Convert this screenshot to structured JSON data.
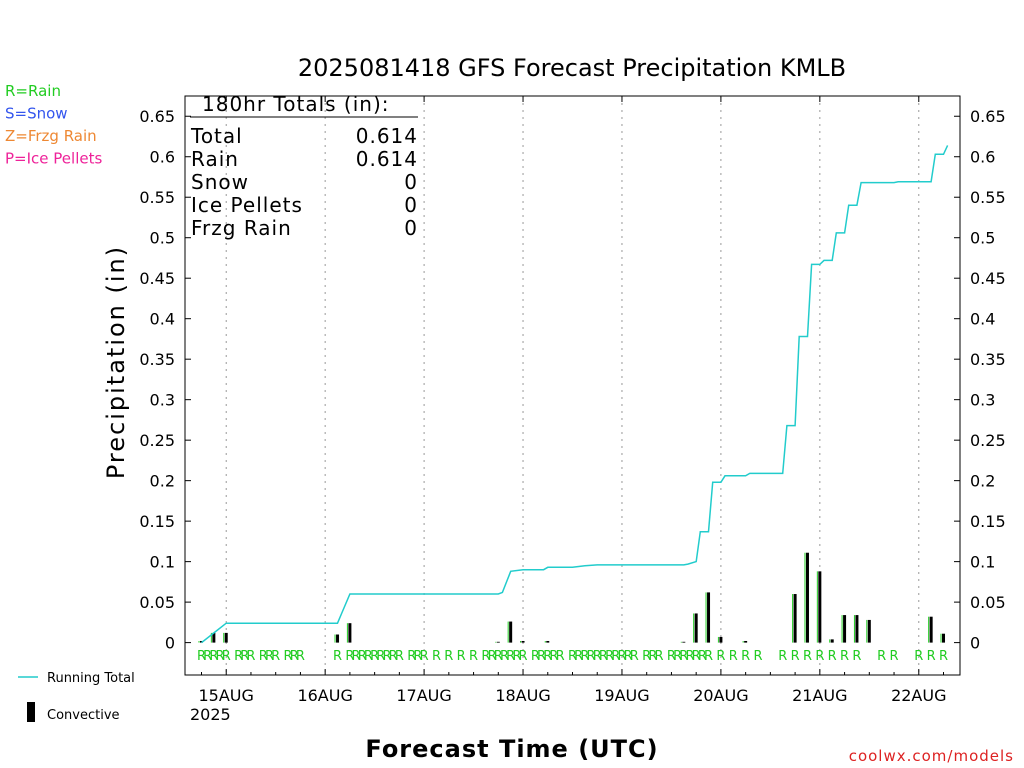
{
  "chart_data": {
    "type": "bar",
    "title": "2025081418 GFS Forecast Precipitation KMLB",
    "xlabel": "Forecast Time (UTC)",
    "ylabel": "Precipitation (in)",
    "ylim": [
      -0.04,
      0.675
    ],
    "xlim_hours": [
      -4,
      184
    ],
    "y_ticks": [
      "0",
      "0.05",
      "0.1",
      "0.15",
      "0.2",
      "0.25",
      "0.3",
      "0.35",
      "0.4",
      "0.45",
      "0.5",
      "0.55",
      "0.6",
      "0.65"
    ],
    "y_tick_values": [
      0,
      0.05,
      0.1,
      0.15,
      0.2,
      0.25,
      0.3,
      0.35,
      0.4,
      0.45,
      0.5,
      0.55,
      0.6,
      0.65
    ],
    "date_labels": [
      "15AUG",
      "16AUG",
      "17AUG",
      "18AUG",
      "19AUG",
      "20AUG",
      "21AUG",
      "22AUG"
    ],
    "date_hours": [
      6,
      30,
      54,
      78,
      102,
      126,
      150,
      174
    ],
    "year_label": "2025",
    "grid": "dotted-vertical",
    "legend_top": [
      {
        "label": "R=Rain",
        "color": "#22cc22"
      },
      {
        "label": "S=Snow",
        "color": "#3355ee"
      },
      {
        "label": "Z=Frzg Rain",
        "color": "#ee8833"
      },
      {
        "label": "P=Ice Pellets",
        "color": "#ee2299"
      }
    ],
    "legend_bottom": {
      "line": "Running Total",
      "bar": "Convective"
    },
    "totals": {
      "header": "180hr Totals (in):",
      "rows": [
        {
          "label": "Total",
          "value": "0.614"
        },
        {
          "label": "Rain",
          "value": "0.614"
        },
        {
          "label": "Snow",
          "value": "0"
        },
        {
          "label": "Ice Pellets",
          "value": "0"
        },
        {
          "label": "Frzg Rain",
          "value": "0"
        }
      ]
    },
    "running_total": {
      "name": "Running Total",
      "color": "#22cccc",
      "points": [
        [
          0,
          0
        ],
        [
          3,
          0.012
        ],
        [
          6,
          0.024
        ],
        [
          33,
          0.024
        ],
        [
          34,
          0.036
        ],
        [
          36,
          0.06
        ],
        [
          72,
          0.06
        ],
        [
          73,
          0.062
        ],
        [
          75,
          0.088
        ],
        [
          78,
          0.09
        ],
        [
          83,
          0.09
        ],
        [
          84,
          0.093
        ],
        [
          90,
          0.093
        ],
        [
          93,
          0.095
        ],
        [
          96,
          0.096
        ],
        [
          117,
          0.096
        ],
        [
          118,
          0.097
        ],
        [
          120,
          0.1
        ],
        [
          121,
          0.137
        ],
        [
          123,
          0.137
        ],
        [
          124,
          0.198
        ],
        [
          126,
          0.198
        ],
        [
          127,
          0.206
        ],
        [
          132,
          0.206
        ],
        [
          133,
          0.209
        ],
        [
          141,
          0.209
        ],
        [
          142,
          0.268
        ],
        [
          144,
          0.268
        ],
        [
          145,
          0.378
        ],
        [
          147,
          0.378
        ],
        [
          148,
          0.467
        ],
        [
          150,
          0.467
        ],
        [
          151,
          0.472
        ],
        [
          153,
          0.472
        ],
        [
          154,
          0.506
        ],
        [
          156,
          0.506
        ],
        [
          157,
          0.54
        ],
        [
          159,
          0.54
        ],
        [
          160,
          0.568
        ],
        [
          168,
          0.568
        ],
        [
          169,
          0.569
        ],
        [
          177,
          0.569
        ],
        [
          178,
          0.603
        ],
        [
          180,
          0.603
        ],
        [
          181,
          0.614
        ]
      ]
    },
    "convective": {
      "name": "Convective",
      "hours": [
        0,
        3,
        6,
        33,
        36,
        72,
        75,
        78,
        84,
        117,
        120,
        123,
        126,
        132,
        144,
        147,
        150,
        153,
        156,
        159,
        162,
        177,
        180
      ],
      "values": [
        0.002,
        0.012,
        0.012,
        0.01,
        0.024,
        0.001,
        0.026,
        0.002,
        0.002,
        0.001,
        0.036,
        0.062,
        0.007,
        0.002,
        0.06,
        0.111,
        0.088,
        0.004,
        0.034,
        0.034,
        0.028,
        0.032,
        0.011
      ]
    },
    "precip_type_markers": {
      "letter": "R",
      "hours": [
        0,
        1.5,
        3,
        4.5,
        6,
        9,
        10.5,
        12,
        15,
        16.5,
        18,
        21,
        22.5,
        24,
        33,
        36,
        37.5,
        39,
        40.5,
        42,
        43.5,
        45,
        46.5,
        48,
        51,
        52.5,
        54,
        57,
        60,
        63,
        66,
        69,
        70.5,
        72,
        73.5,
        75,
        76.5,
        78,
        81,
        82.5,
        84,
        85.5,
        87,
        90,
        91.5,
        93,
        94.5,
        96,
        97.5,
        99,
        100.5,
        102,
        103.5,
        105,
        108,
        109.5,
        111,
        114,
        115.5,
        117,
        118.5,
        120,
        121.5,
        123,
        126,
        129,
        132,
        135,
        141,
        144,
        147,
        150,
        153,
        156,
        159,
        165,
        168,
        174,
        177,
        180
      ]
    },
    "footer": "coolwx.com/models"
  }
}
